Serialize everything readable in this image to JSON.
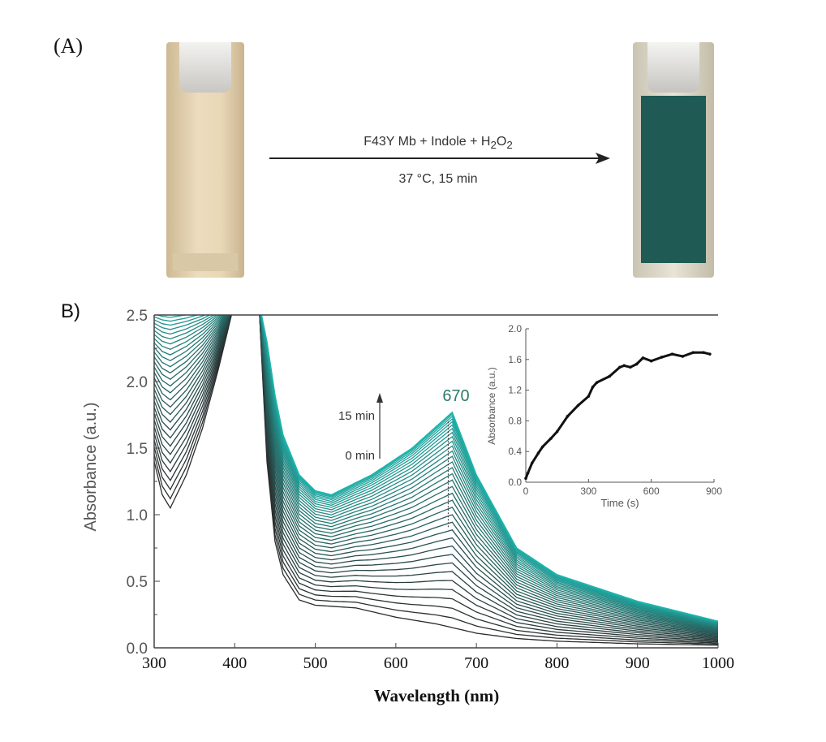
{
  "panel_a": {
    "label": "(A)",
    "reaction_top": "F43Y Mb + Indole + H",
    "reaction_sub1": "2",
    "reaction_o": "O",
    "reaction_sub2": "2",
    "conditions": "37 °C, 15 min",
    "colors": {
      "before": "#e6d2b0",
      "after": "#1f5a55"
    }
  },
  "panel_b_label": "B)",
  "chart_data": [
    {
      "type": "line",
      "xlabel": "Wavelength (nm)",
      "ylabel": "Absorbance (a.u.)",
      "xlim": [
        300,
        1000
      ],
      "ylim": [
        0,
        2.5
      ],
      "xticks": [
        "300",
        "400",
        "500",
        "600",
        "700",
        "800",
        "900",
        "1000"
      ],
      "yticks": [
        "0.0",
        "0.5",
        "1.0",
        "1.5",
        "2.0",
        "2.5"
      ],
      "peak_label": "670",
      "arrow_top_label": "15 min",
      "arrow_bottom_label": "0 min",
      "trace_count": 36,
      "colors": {
        "first": "#2b2b2b",
        "last": "#1fb5ad"
      },
      "first_spectrum": {
        "x": [
          300,
          310,
          320,
          340,
          360,
          380,
          400,
          420,
          430,
          440,
          450,
          460,
          480,
          500,
          550,
          600,
          650,
          700,
          750,
          800,
          900,
          1000
        ],
        "y": [
          1.4,
          1.15,
          1.05,
          1.3,
          1.65,
          2.1,
          2.6,
          2.6,
          2.6,
          1.4,
          0.8,
          0.55,
          0.36,
          0.32,
          0.3,
          0.23,
          0.18,
          0.11,
          0.07,
          0.05,
          0.03,
          0.02
        ]
      },
      "last_spectrum": {
        "x": [
          300,
          310,
          320,
          340,
          360,
          380,
          400,
          420,
          430,
          440,
          450,
          460,
          480,
          500,
          520,
          570,
          620,
          670,
          700,
          750,
          800,
          900,
          1000
        ],
        "y": [
          2.6,
          2.6,
          2.6,
          2.6,
          2.6,
          2.6,
          2.6,
          2.6,
          2.6,
          2.3,
          1.9,
          1.6,
          1.3,
          1.18,
          1.15,
          1.3,
          1.5,
          1.77,
          1.3,
          0.75,
          0.55,
          0.35,
          0.2
        ]
      }
    },
    {
      "type": "line",
      "xlabel": "Time (s)",
      "ylabel": "Absorbance (a.u.)",
      "xlim": [
        0,
        900
      ],
      "ylim": [
        0,
        2.0
      ],
      "xticks": [
        "0",
        "300",
        "600",
        "900"
      ],
      "yticks": [
        "0.0",
        "0.4",
        "0.8",
        "1.2",
        "1.6",
        "2.0"
      ],
      "x": [
        0,
        10,
        30,
        60,
        80,
        120,
        150,
        200,
        250,
        300,
        320,
        340,
        400,
        450,
        470,
        500,
        530,
        560,
        600,
        650,
        700,
        750,
        800,
        850,
        880
      ],
      "y": [
        0.05,
        0.12,
        0.25,
        0.38,
        0.46,
        0.57,
        0.66,
        0.86,
        1.0,
        1.12,
        1.24,
        1.3,
        1.38,
        1.5,
        1.52,
        1.5,
        1.54,
        1.62,
        1.58,
        1.63,
        1.67,
        1.64,
        1.69,
        1.69,
        1.67
      ]
    }
  ]
}
